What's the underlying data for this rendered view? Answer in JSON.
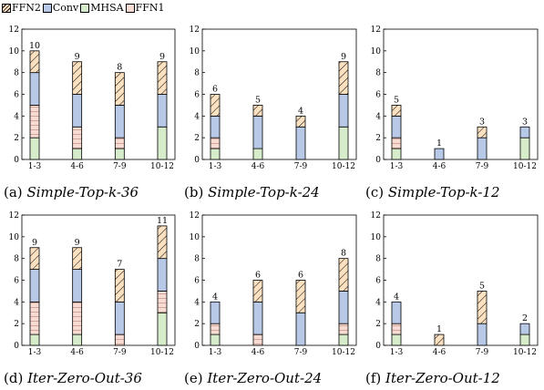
{
  "legend": [
    {
      "label": "FFN2",
      "color": "#fce1c1",
      "hatch": "diag"
    },
    {
      "label": "Conv",
      "color": "#b8c9e8",
      "hatch": "none"
    },
    {
      "label": "MHSA",
      "color": "#d6eccb",
      "hatch": "none"
    },
    {
      "label": "FFN1",
      "color": "#f8dcd3",
      "hatch": "horiz"
    }
  ],
  "chart_data": [
    {
      "type": "bar",
      "stacked": true,
      "caption_prefix": "(a)",
      "caption": "Simple-Top-k-36",
      "categories": [
        "1-3",
        "4-6",
        "7-9",
        "10-12"
      ],
      "ylim": [
        0,
        12
      ],
      "yticks": [
        0,
        2,
        4,
        6,
        8,
        10,
        12
      ],
      "series": [
        {
          "name": "MHSA",
          "values": [
            2,
            1,
            1,
            3
          ]
        },
        {
          "name": "FFN1",
          "values": [
            3,
            2,
            1,
            0
          ]
        },
        {
          "name": "Conv",
          "values": [
            3,
            3,
            3,
            3
          ]
        },
        {
          "name": "FFN2",
          "values": [
            2,
            3,
            3,
            3
          ]
        }
      ],
      "totals": [
        10,
        9,
        8,
        9
      ]
    },
    {
      "type": "bar",
      "stacked": true,
      "caption_prefix": "(b)",
      "caption": "Simple-Top-k-24",
      "categories": [
        "1-3",
        "4-6",
        "7-9",
        "10-12"
      ],
      "ylim": [
        0,
        12
      ],
      "yticks": [
        0,
        2,
        4,
        6,
        8,
        10,
        12
      ],
      "series": [
        {
          "name": "MHSA",
          "values": [
            1,
            1,
            0,
            3
          ]
        },
        {
          "name": "FFN1",
          "values": [
            1,
            0,
            0,
            0
          ]
        },
        {
          "name": "Conv",
          "values": [
            2,
            3,
            3,
            3
          ]
        },
        {
          "name": "FFN2",
          "values": [
            2,
            1,
            1,
            3
          ]
        }
      ],
      "totals": [
        6,
        5,
        4,
        9
      ]
    },
    {
      "type": "bar",
      "stacked": true,
      "caption_prefix": "(c)",
      "caption": "Simple-Top-k-12",
      "categories": [
        "1-3",
        "4-6",
        "7-9",
        "10-12"
      ],
      "ylim": [
        0,
        12
      ],
      "yticks": [
        0,
        2,
        4,
        6,
        8,
        10,
        12
      ],
      "series": [
        {
          "name": "MHSA",
          "values": [
            1,
            0,
            0,
            2
          ]
        },
        {
          "name": "FFN1",
          "values": [
            1,
            0,
            0,
            0
          ]
        },
        {
          "name": "Conv",
          "values": [
            2,
            1,
            2,
            1
          ]
        },
        {
          "name": "FFN2",
          "values": [
            1,
            0,
            1,
            0
          ]
        }
      ],
      "totals": [
        5,
        1,
        3,
        3
      ]
    },
    {
      "type": "bar",
      "stacked": true,
      "caption_prefix": "(d)",
      "caption": "Iter-Zero-Out-36",
      "categories": [
        "1-3",
        "4-6",
        "7-9",
        "10-12"
      ],
      "ylim": [
        0,
        12
      ],
      "yticks": [
        0,
        2,
        4,
        6,
        8,
        10,
        12
      ],
      "series": [
        {
          "name": "MHSA",
          "values": [
            1,
            1,
            0,
            3
          ]
        },
        {
          "name": "FFN1",
          "values": [
            3,
            3,
            1,
            2
          ]
        },
        {
          "name": "Conv",
          "values": [
            3,
            3,
            3,
            3
          ]
        },
        {
          "name": "FFN2",
          "values": [
            2,
            2,
            3,
            3
          ]
        }
      ],
      "totals": [
        9,
        9,
        7,
        11
      ]
    },
    {
      "type": "bar",
      "stacked": true,
      "caption_prefix": "(e)",
      "caption": "Iter-Zero-Out-24",
      "categories": [
        "1-3",
        "4-6",
        "7-9",
        "10-12"
      ],
      "ylim": [
        0,
        12
      ],
      "yticks": [
        0,
        2,
        4,
        6,
        8,
        10,
        12
      ],
      "series": [
        {
          "name": "MHSA",
          "values": [
            1,
            0,
            0,
            1
          ]
        },
        {
          "name": "FFN1",
          "values": [
            1,
            1,
            0,
            1
          ]
        },
        {
          "name": "Conv",
          "values": [
            2,
            3,
            3,
            3
          ]
        },
        {
          "name": "FFN2",
          "values": [
            0,
            2,
            3,
            3
          ]
        }
      ],
      "totals": [
        4,
        6,
        6,
        8
      ]
    },
    {
      "type": "bar",
      "stacked": true,
      "caption_prefix": "(f)",
      "caption": "Iter-Zero-Out-12",
      "categories": [
        "1-3",
        "4-6",
        "7-9",
        "10-12"
      ],
      "ylim": [
        0,
        12
      ],
      "yticks": [
        0,
        2,
        4,
        6,
        8,
        10,
        12
      ],
      "series": [
        {
          "name": "MHSA",
          "values": [
            1,
            0,
            0,
            1
          ]
        },
        {
          "name": "FFN1",
          "values": [
            1,
            0,
            0,
            0
          ]
        },
        {
          "name": "Conv",
          "values": [
            2,
            0,
            2,
            1
          ]
        },
        {
          "name": "FFN2",
          "values": [
            0,
            1,
            3,
            0
          ]
        }
      ],
      "totals": [
        4,
        1,
        5,
        2
      ]
    }
  ]
}
